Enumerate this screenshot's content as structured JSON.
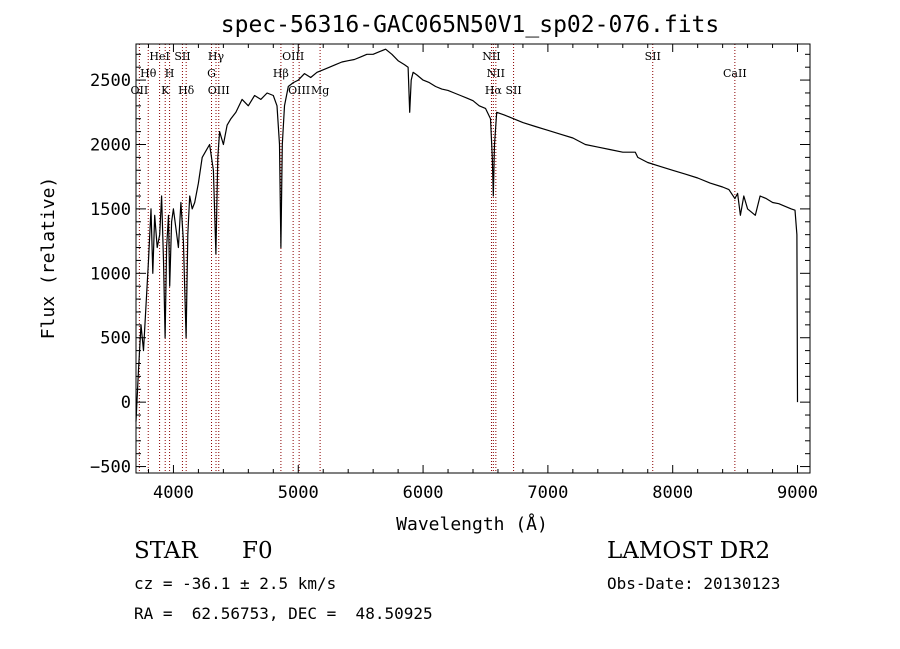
{
  "chart_data": {
    "type": "line",
    "title": "spec-56316-GAC065N50V1_sp02-076.fits",
    "xlabel": "Wavelength (Å)",
    "ylabel": "Flux (relative)",
    "xlim": [
      3700,
      9100
    ],
    "ylim": [
      -550,
      2780
    ],
    "xticks": [
      4000,
      5000,
      6000,
      7000,
      8000,
      9000
    ],
    "yticks": [
      -500,
      0,
      500,
      1000,
      1500,
      2000,
      2500
    ],
    "grid": false,
    "line_color": "#000000",
    "marker_color": "#8b0000",
    "series": [
      {
        "x": [
          3700,
          3720,
          3740,
          3760,
          3780,
          3800,
          3820,
          3835,
          3850,
          3870,
          3890,
          3905,
          3920,
          3933,
          3945,
          3960,
          3970,
          3985,
          4000,
          4020,
          4040,
          4060,
          4080,
          4101,
          4115,
          4130,
          4150,
          4170,
          4200,
          4230,
          4260,
          4290,
          4320,
          4340,
          4355,
          4370,
          4400,
          4430,
          4460,
          4500,
          4550,
          4600,
          4650,
          4700,
          4750,
          4800,
          4830,
          4850,
          4861,
          4872,
          4890,
          4920,
          4960,
          5000,
          5050,
          5100,
          5150,
          5200,
          5250,
          5300,
          5350,
          5400,
          5450,
          5500,
          5550,
          5600,
          5650,
          5700,
          5750,
          5800,
          5850,
          5880,
          5893,
          5905,
          5920,
          5950,
          6000,
          6050,
          6100,
          6150,
          6200,
          6250,
          6300,
          6350,
          6400,
          6450,
          6500,
          6540,
          6555,
          6563,
          6572,
          6590,
          6650,
          6700,
          6800,
          6900,
          7000,
          7100,
          7200,
          7300,
          7400,
          7500,
          7600,
          7700,
          7720,
          7800,
          7900,
          8000,
          8100,
          8200,
          8300,
          8400,
          8450,
          8498,
          8520,
          8542,
          8570,
          8600,
          8662,
          8700,
          8750,
          8800,
          8850,
          8900,
          8950,
          8980,
          8995,
          9000
        ],
        "values": [
          -150,
          250,
          600,
          400,
          750,
          1100,
          1500,
          1000,
          1450,
          1200,
          1300,
          1600,
          1100,
          500,
          1200,
          1450,
          900,
          1400,
          1500,
          1350,
          1200,
          1550,
          1250,
          500,
          1300,
          1600,
          1500,
          1550,
          1700,
          1900,
          1950,
          2000,
          1800,
          1150,
          1900,
          2100,
          2000,
          2150,
          2200,
          2250,
          2350,
          2300,
          2380,
          2350,
          2400,
          2380,
          2300,
          2000,
          1200,
          2000,
          2300,
          2450,
          2480,
          2500,
          2550,
          2520,
          2560,
          2580,
          2600,
          2620,
          2640,
          2650,
          2660,
          2680,
          2700,
          2700,
          2720,
          2740,
          2700,
          2650,
          2620,
          2600,
          2250,
          2500,
          2560,
          2540,
          2500,
          2480,
          2450,
          2430,
          2420,
          2400,
          2380,
          2360,
          2340,
          2300,
          2280,
          2200,
          1900,
          1600,
          2000,
          2250,
          2230,
          2210,
          2170,
          2140,
          2110,
          2080,
          2050,
          2000,
          1980,
          1960,
          1940,
          1940,
          1900,
          1860,
          1830,
          1800,
          1770,
          1740,
          1700,
          1670,
          1650,
          1580,
          1620,
          1450,
          1600,
          1500,
          1450,
          1600,
          1580,
          1550,
          1540,
          1520,
          1500,
          1490,
          1300,
          0
        ]
      }
    ],
    "lines": [
      {
        "label": "OII",
        "x": 3727,
        "row": 3
      },
      {
        "label": "Hθ",
        "x": 3798,
        "row": 2
      },
      {
        "label": "HeI",
        "x": 3889,
        "row": 1
      },
      {
        "label": "K",
        "x": 3934,
        "row": 3
      },
      {
        "label": "H",
        "x": 3969,
        "row": 2
      },
      {
        "label": "SII",
        "x": 4072,
        "row": 1
      },
      {
        "label": "Hδ",
        "x": 4102,
        "row": 3
      },
      {
        "label": "G",
        "x": 4305,
        "row": 2
      },
      {
        "label": "Hγ",
        "x": 4341,
        "row": 1
      },
      {
        "label": "OIII",
        "x": 4363,
        "row": 3
      },
      {
        "label": "Hβ",
        "x": 4861,
        "row": 2
      },
      {
        "label": "OIII",
        "x": 4959,
        "row": 1
      },
      {
        "label": "OIII",
        "x": 5007,
        "row": 3
      },
      {
        "label": "Mg",
        "x": 5175,
        "row": 3
      },
      {
        "label": "NII",
        "x": 6548,
        "row": 1
      },
      {
        "label": "Hα",
        "x": 6563,
        "row": 3
      },
      {
        "label": "NII",
        "x": 6583,
        "row": 2
      },
      {
        "label": "SII",
        "x": 6725,
        "row": 3
      },
      {
        "label": "SII",
        "x": 7840,
        "row": 1
      },
      {
        "label": "CaII",
        "x": 8498,
        "row": 2
      }
    ]
  },
  "info": {
    "class_label": "STAR",
    "subclass": "F0",
    "survey": "LAMOST DR2",
    "cz_text": "cz = -36.1 ± 2.5 km/s",
    "obs_date": "Obs-Date: 20130123",
    "coords": "RA =  62.56753, DEC =  48.50925"
  }
}
